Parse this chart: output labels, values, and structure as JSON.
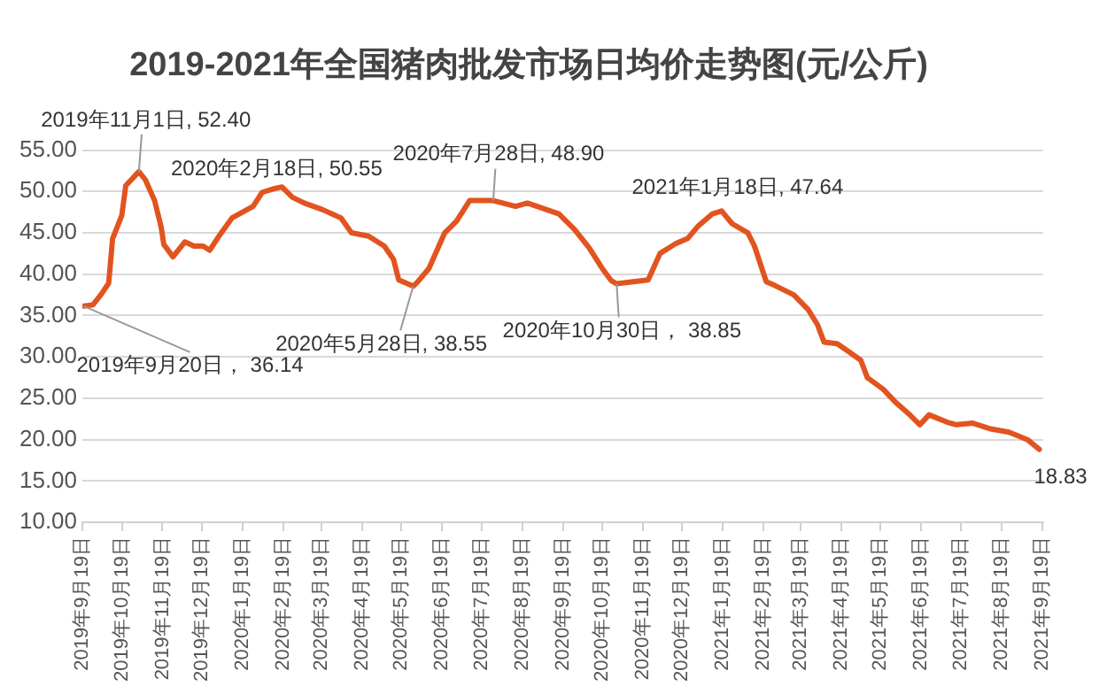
{
  "chart_data": {
    "type": "line",
    "title": "2019-2021年全国猪肉批发市场日均价走势图(元/公斤)",
    "x": [
      "2019-09-20",
      "2019-09-27",
      "2019-10-03",
      "2019-10-09",
      "2019-10-12",
      "2019-10-19",
      "2019-10-22",
      "2019-11-01",
      "2019-11-06",
      "2019-11-13",
      "2019-11-18",
      "2019-11-20",
      "2019-11-27",
      "2019-12-06",
      "2019-12-13",
      "2019-12-20",
      "2019-12-25",
      "2020-01-01",
      "2020-01-11",
      "2020-01-19",
      "2020-01-27",
      "2020-02-03",
      "2020-02-11",
      "2020-02-18",
      "2020-02-26",
      "2020-03-06",
      "2020-03-20",
      "2020-04-03",
      "2020-04-11",
      "2020-04-24",
      "2020-05-06",
      "2020-05-13",
      "2020-05-17",
      "2020-05-28",
      "2020-05-31",
      "2020-06-09",
      "2020-06-21",
      "2020-06-30",
      "2020-07-10",
      "2020-07-28",
      "2020-08-14",
      "2020-08-23",
      "2020-09-16",
      "2020-09-28",
      "2020-10-09",
      "2020-10-19",
      "2020-10-26",
      "2020-10-30",
      "2020-11-23",
      "2020-12-02",
      "2020-12-14",
      "2020-12-23",
      "2020-12-31",
      "2021-01-11",
      "2021-01-18",
      "2021-01-26",
      "2021-02-07",
      "2021-02-12",
      "2021-02-21",
      "2021-02-28",
      "2021-03-14",
      "2021-03-25",
      "2021-04-01",
      "2021-04-06",
      "2021-04-16",
      "2021-04-27",
      "2021-05-04",
      "2021-05-09",
      "2021-05-21",
      "2021-05-30",
      "2021-06-11",
      "2021-06-18",
      "2021-06-25",
      "2021-07-09",
      "2021-07-16",
      "2021-07-28",
      "2021-08-11",
      "2021-08-25",
      "2021-09-08",
      "2021-09-17"
    ],
    "series": [
      {
        "color": "#e2541f",
        "values": [
          36.14,
          36.3,
          37.5,
          38.9,
          44.3,
          47.1,
          50.7,
          52.4,
          51.4,
          48.9,
          45.7,
          43.6,
          42.1,
          43.9,
          43.4,
          43.4,
          42.9,
          44.6,
          46.8,
          47.5,
          48.2,
          49.9,
          50.3,
          50.55,
          49.3,
          48.6,
          47.8,
          46.8,
          45.0,
          44.6,
          43.4,
          41.8,
          39.3,
          38.55,
          39.0,
          40.7,
          45.0,
          46.4,
          48.9,
          48.9,
          48.2,
          48.6,
          47.3,
          45.4,
          43.2,
          40.7,
          39.2,
          38.85,
          39.3,
          42.5,
          43.7,
          44.3,
          45.8,
          47.3,
          47.64,
          46.1,
          45.0,
          43.4,
          39.1,
          38.6,
          37.5,
          35.7,
          33.9,
          31.8,
          31.6,
          30.4,
          29.6,
          27.5,
          26.1,
          24.6,
          22.9,
          21.8,
          23.0,
          22.1,
          21.8,
          22.0,
          21.3,
          20.9,
          20.0,
          18.83
        ]
      }
    ],
    "xlim": [
      "2019-09-19",
      "2021-09-20"
    ],
    "xticks": [
      {
        "value": "2019-09-19",
        "label": "2019年9月19日"
      },
      {
        "value": "2019-10-19",
        "label": "2019年10月19日"
      },
      {
        "value": "2019-11-19",
        "label": "2019年11月19日"
      },
      {
        "value": "2019-12-19",
        "label": "2019年12月19日"
      },
      {
        "value": "2020-01-19",
        "label": "2020年1月19日"
      },
      {
        "value": "2020-02-19",
        "label": "2020年2月19日"
      },
      {
        "value": "2020-03-19",
        "label": "2020年3月19日"
      },
      {
        "value": "2020-04-19",
        "label": "2020年4月19日"
      },
      {
        "value": "2020-05-19",
        "label": "2020年5月19日"
      },
      {
        "value": "2020-06-19",
        "label": "2020年6月19日"
      },
      {
        "value": "2020-07-19",
        "label": "2020年7月19日"
      },
      {
        "value": "2020-08-19",
        "label": "2020年8月19日"
      },
      {
        "value": "2020-09-19",
        "label": "2020年9月19日"
      },
      {
        "value": "2020-10-19",
        "label": "2020年10月19日"
      },
      {
        "value": "2020-11-19",
        "label": "2020年11月19日"
      },
      {
        "value": "2020-12-19",
        "label": "2020年12月19日"
      },
      {
        "value": "2021-01-19",
        "label": "2021年1月19日"
      },
      {
        "value": "2021-02-19",
        "label": "2021年2月19日"
      },
      {
        "value": "2021-03-19",
        "label": "2021年3月19日"
      },
      {
        "value": "2021-04-19",
        "label": "2021年4月19日"
      },
      {
        "value": "2021-05-19",
        "label": "2021年5月19日"
      },
      {
        "value": "2021-06-19",
        "label": "2021年6月19日"
      },
      {
        "value": "2021-07-19",
        "label": "2021年7月19日"
      },
      {
        "value": "2021-08-19",
        "label": "2021年8月19日"
      },
      {
        "value": "2021-09-19",
        "label": "2021年9月19日"
      }
    ],
    "ylim": [
      10,
      55
    ],
    "yticks": [
      {
        "value": 10,
        "label": "10.00"
      },
      {
        "value": 15,
        "label": "15.00"
      },
      {
        "value": 20,
        "label": "20.00"
      },
      {
        "value": 25,
        "label": "25.00"
      },
      {
        "value": 30,
        "label": "30.00"
      },
      {
        "value": 35,
        "label": "35.00"
      },
      {
        "value": 40,
        "label": "40.00"
      },
      {
        "value": 45,
        "label": "45.00"
      },
      {
        "value": 50,
        "label": "50.00"
      },
      {
        "value": 55,
        "label": "55.00"
      }
    ],
    "grid": "y",
    "marker": "none",
    "line_style": "solid",
    "legend": false,
    "annotations": [
      {
        "text": "2019年9月20日， 36.14",
        "x": "2019-09-20",
        "y": 36.14
      },
      {
        "text": "2019年11月1日, 52.40",
        "x": "2019-11-01",
        "y": 52.4
      },
      {
        "text": "2020年2月18日, 50.55",
        "x": "2020-02-18",
        "y": 50.55
      },
      {
        "text": "2020年5月28日, 38.55",
        "x": "2020-05-28",
        "y": 38.55
      },
      {
        "text": "2020年7月28日, 48.90",
        "x": "2020-07-28",
        "y": 48.9
      },
      {
        "text": "2020年10月30日， 38.85",
        "x": "2020-10-30",
        "y": 38.85
      },
      {
        "text": "2021年1月18日, 47.64",
        "x": "2021-01-18",
        "y": 47.64
      },
      {
        "text": "18.83",
        "x": "2021-09-17",
        "y": 18.83
      }
    ]
  }
}
